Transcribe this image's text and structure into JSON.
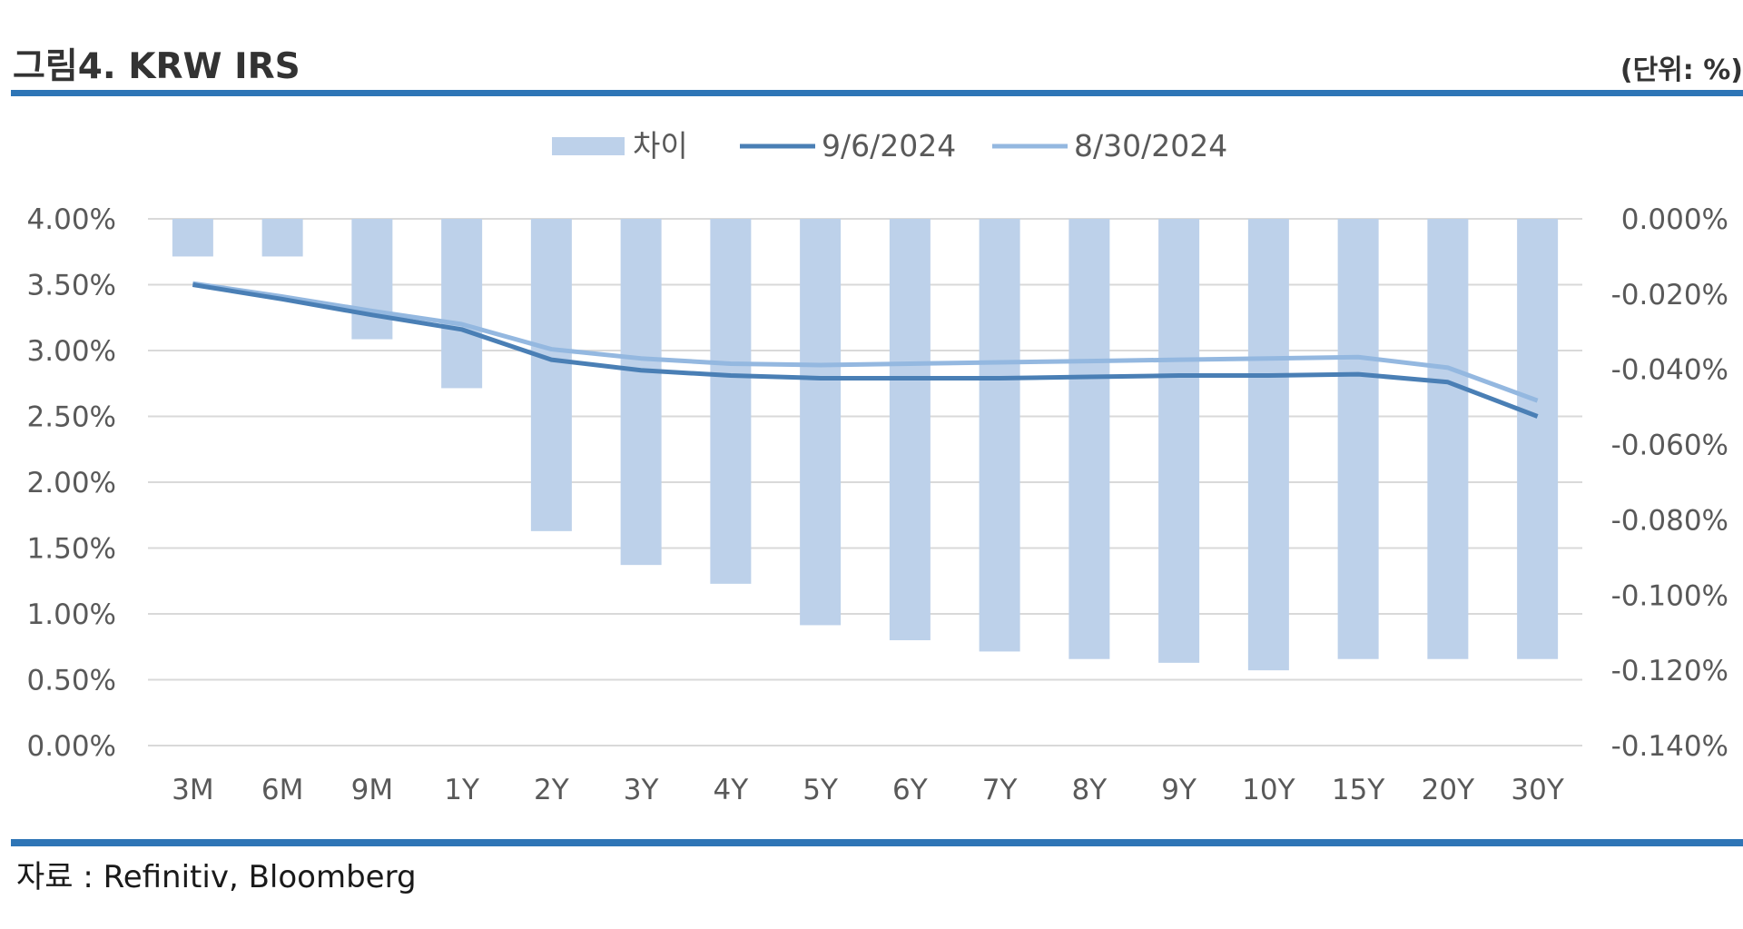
{
  "header": {
    "title": "그림4. KRW IRS",
    "unit": "(단위: %)"
  },
  "footer": {
    "source": "자료 : Refinitiv, Bloomberg"
  },
  "chart_data": {
    "type": "bar",
    "categories": [
      "3M",
      "6M",
      "9M",
      "1Y",
      "2Y",
      "3Y",
      "4Y",
      "5Y",
      "6Y",
      "7Y",
      "8Y",
      "9Y",
      "10Y",
      "15Y",
      "20Y",
      "30Y"
    ],
    "bar_series": {
      "name": "차이",
      "axis": "right",
      "color": "#bdd1ea",
      "values": [
        -0.01,
        -0.01,
        -0.032,
        -0.045,
        -0.083,
        -0.092,
        -0.097,
        -0.108,
        -0.112,
        -0.115,
        -0.117,
        -0.118,
        -0.12,
        -0.117,
        -0.117,
        -0.117
      ]
    },
    "line_series": [
      {
        "name": "9/6/2024",
        "axis": "left",
        "color": "#4a7fb5",
        "values": [
          3.5,
          3.39,
          3.27,
          3.16,
          2.93,
          2.85,
          2.81,
          2.79,
          2.79,
          2.79,
          2.8,
          2.81,
          2.81,
          2.82,
          2.76,
          2.5
        ]
      },
      {
        "name": "8/30/2024",
        "axis": "left",
        "color": "#94b8e0",
        "values": [
          3.51,
          3.41,
          3.3,
          3.2,
          3.01,
          2.94,
          2.9,
          2.89,
          2.9,
          2.91,
          2.92,
          2.93,
          2.94,
          2.95,
          2.87,
          2.62
        ]
      }
    ],
    "left_axis": {
      "ylim": [
        0,
        4
      ],
      "ticks": [
        4.0,
        3.5,
        3.0,
        2.5,
        2.0,
        1.5,
        1.0,
        0.5,
        0.0
      ],
      "tick_labels": [
        "4.00%",
        "3.50%",
        "3.00%",
        "2.50%",
        "2.00%",
        "1.50%",
        "1.00%",
        "0.50%",
        "0.00%"
      ]
    },
    "right_axis": {
      "ylim": [
        -0.14,
        0
      ],
      "ticks": [
        0,
        -0.02,
        -0.04,
        -0.06,
        -0.08,
        -0.1,
        -0.12,
        -0.14
      ],
      "tick_labels": [
        "0.000%",
        "-0.020%",
        "-0.040%",
        "-0.060%",
        "-0.080%",
        "-0.100%",
        "-0.120%",
        "-0.140%"
      ]
    },
    "legend_position": "top-center",
    "grid": true,
    "gridline_color": "#d9d9d9"
  }
}
